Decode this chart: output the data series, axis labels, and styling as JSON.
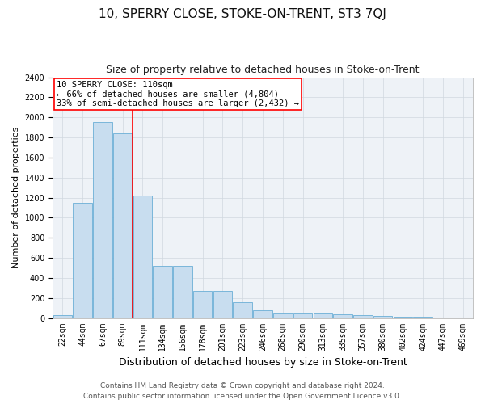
{
  "title": "10, SPERRY CLOSE, STOKE-ON-TRENT, ST3 7QJ",
  "subtitle": "Size of property relative to detached houses in Stoke-on-Trent",
  "xlabel": "Distribution of detached houses by size in Stoke-on-Trent",
  "ylabel": "Number of detached properties",
  "categories": [
    "22sqm",
    "44sqm",
    "67sqm",
    "89sqm",
    "111sqm",
    "134sqm",
    "156sqm",
    "178sqm",
    "201sqm",
    "223sqm",
    "246sqm",
    "268sqm",
    "290sqm",
    "313sqm",
    "335sqm",
    "357sqm",
    "380sqm",
    "402sqm",
    "424sqm",
    "447sqm",
    "469sqm"
  ],
  "values": [
    30,
    1150,
    1950,
    1840,
    1220,
    520,
    520,
    270,
    270,
    155,
    80,
    50,
    55,
    50,
    40,
    25,
    20,
    10,
    10,
    5,
    5
  ],
  "bar_color": "#c8ddef",
  "bar_edge_color": "#6aaed6",
  "grid_color": "#d0d8e0",
  "vline_color": "red",
  "annotation_text": "10 SPERRY CLOSE: 110sqm\n← 66% of detached houses are smaller (4,804)\n33% of semi-detached houses are larger (2,432) →",
  "annotation_box_color": "white",
  "annotation_box_edge_color": "red",
  "ylim": [
    0,
    2400
  ],
  "yticks": [
    0,
    200,
    400,
    600,
    800,
    1000,
    1200,
    1400,
    1600,
    1800,
    2000,
    2200,
    2400
  ],
  "footer1": "Contains HM Land Registry data © Crown copyright and database right 2024.",
  "footer2": "Contains public sector information licensed under the Open Government Licence v3.0.",
  "title_fontsize": 11,
  "subtitle_fontsize": 9,
  "xlabel_fontsize": 9,
  "ylabel_fontsize": 8,
  "tick_fontsize": 7,
  "annotation_fontsize": 7.5,
  "footer_fontsize": 6.5,
  "bg_color": "#eef2f7"
}
